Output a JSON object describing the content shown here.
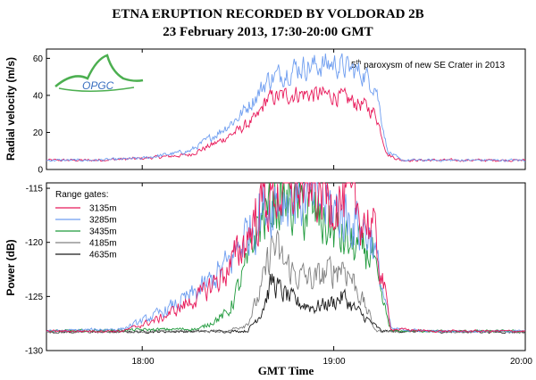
{
  "title": "ETNA ERUPTION RECORDED BY VOLDORAD 2B",
  "subtitle": "23 February 2013, 17:30-20:00 GMT",
  "annotation": {
    "prefix": "5",
    "sup": "th",
    "rest": " paroxysm of new SE Crater in 2013"
  },
  "logo_text": "OPGC",
  "xlabel": "GMT Time",
  "colors": {
    "3135m": "#e8195a",
    "3285m": "#6f9ef0",
    "3435m": "#1f9a3c",
    "4185m": "#808080",
    "4635m": "#1a1a1a"
  },
  "chart_data": [
    {
      "type": "line",
      "ylabel": "Radial velocity (m/s)",
      "xlim": [
        17.5,
        20.0
      ],
      "ylim": [
        0,
        65
      ],
      "yticks": [
        0,
        20,
        40,
        60
      ],
      "series": [
        {
          "name": "3285m",
          "x": [
            17.5,
            17.75,
            18.0,
            18.25,
            18.4,
            18.5,
            18.6,
            18.65,
            18.8,
            19.0,
            19.15,
            19.22,
            19.28,
            19.35,
            19.5,
            20.0
          ],
          "y": [
            5,
            5,
            6,
            10,
            20,
            28,
            40,
            48,
            55,
            57,
            52,
            45,
            10,
            5,
            5,
            5
          ]
        },
        {
          "name": "3135m",
          "x": [
            17.5,
            17.75,
            18.0,
            18.25,
            18.4,
            18.5,
            18.6,
            18.65,
            18.8,
            19.0,
            19.15,
            19.22,
            19.28,
            19.35,
            19.5,
            20.0
          ],
          "y": [
            5,
            5,
            6,
            8,
            15,
            21,
            28,
            38,
            41,
            40,
            35,
            30,
            8,
            5,
            5,
            5
          ]
        }
      ]
    },
    {
      "type": "line",
      "ylabel": "Power (dB)",
      "xlim": [
        17.5,
        20.0
      ],
      "ylim": [
        -130,
        -114.5
      ],
      "yticks": [
        -130,
        -125,
        -120,
        -115
      ],
      "xticks": [
        "18:00",
        "19:00",
        "20:00"
      ],
      "legend_title": "Range gates:",
      "legend_position": "top-left",
      "series": [
        {
          "name": "3135m",
          "x": [
            17.5,
            17.9,
            18.1,
            18.3,
            18.45,
            18.55,
            18.62,
            18.7,
            18.8,
            18.9,
            19.0,
            19.1,
            19.2,
            19.25,
            19.3,
            19.5,
            20.0
          ],
          "y": [
            -128.2,
            -128.2,
            -127.0,
            -125.0,
            -122.5,
            -119.5,
            -116.5,
            -115.3,
            -114.6,
            -115.0,
            -115.8,
            -116.5,
            -118.5,
            -123.0,
            -128.0,
            -128.2,
            -128.2
          ]
        },
        {
          "name": "3285m",
          "x": [
            17.5,
            17.9,
            18.1,
            18.3,
            18.45,
            18.55,
            18.62,
            18.7,
            18.8,
            18.9,
            19.0,
            19.1,
            19.2,
            19.25,
            19.3,
            19.5,
            20.0
          ],
          "y": [
            -128.2,
            -128.0,
            -126.5,
            -124.5,
            -122.0,
            -119.0,
            -117.0,
            -115.8,
            -115.6,
            -116.0,
            -117.0,
            -118.0,
            -119.5,
            -124.0,
            -128.0,
            -128.2,
            -128.2
          ]
        },
        {
          "name": "3435m",
          "x": [
            17.5,
            18.3,
            18.45,
            18.55,
            18.6,
            18.7,
            18.8,
            18.9,
            19.0,
            19.1,
            19.2,
            19.23,
            19.3,
            20.0
          ],
          "y": [
            -128.2,
            -128.0,
            -126.5,
            -122.0,
            -118.5,
            -116.0,
            -116.5,
            -117.5,
            -119.0,
            -120.5,
            -121.0,
            -124.0,
            -128.2,
            -128.2
          ]
        },
        {
          "name": "4185m",
          "x": [
            17.5,
            18.45,
            18.55,
            18.62,
            18.68,
            18.72,
            18.8,
            18.9,
            19.0,
            19.05,
            19.1,
            19.18,
            19.22,
            20.0
          ],
          "y": [
            -128.3,
            -128.2,
            -127.5,
            -124.5,
            -120.0,
            -121.5,
            -123.0,
            -123.5,
            -122.5,
            -122.0,
            -123.5,
            -126.5,
            -128.2,
            -128.3
          ]
        },
        {
          "name": "4635m",
          "x": [
            17.5,
            18.55,
            18.62,
            18.68,
            18.72,
            18.8,
            18.9,
            19.0,
            19.05,
            19.1,
            19.2,
            19.25,
            20.0
          ],
          "y": [
            -128.3,
            -128.2,
            -126.5,
            -123.5,
            -124.5,
            -125.5,
            -126.0,
            -125.5,
            -125.0,
            -126.0,
            -127.5,
            -128.2,
            -128.3
          ]
        }
      ]
    }
  ]
}
